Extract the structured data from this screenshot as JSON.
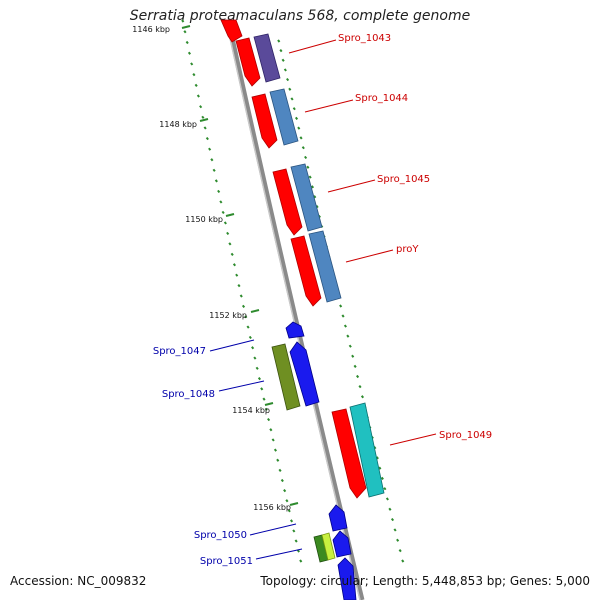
{
  "title": "Serratia proteamaculans 568, complete genome",
  "footer": {
    "accession": "Accession: NC_009832",
    "summary": "Topology: circular; Length: 5,448,853 bp; Genes: 5,000"
  },
  "colors": {
    "backbone": "#8a8a8a",
    "tick": "#2e8b2e",
    "forward_label": "#cc0000",
    "reverse_label": "#0000aa"
  },
  "ticks": [
    {
      "label": "1146 kbp",
      "pos": 1146
    },
    {
      "label": "1148 kbp",
      "pos": 1148
    },
    {
      "label": "1150 kbp",
      "pos": 1150
    },
    {
      "label": "1152 kbp",
      "pos": 1152
    },
    {
      "label": "1154 kbp",
      "pos": 1154
    },
    {
      "label": "1156 kbp",
      "pos": 1156
    }
  ],
  "genes": [
    {
      "name": "Spro_1043",
      "strand": "+",
      "color": "#5a4a9a"
    },
    {
      "name": "Spro_1044",
      "strand": "+",
      "color": "#4f86c0"
    },
    {
      "name": "Spro_1045",
      "strand": "+",
      "color": "#4f86c0"
    },
    {
      "name": "proY",
      "strand": "+",
      "color": "#4f86c0"
    },
    {
      "name": "Spro_1047",
      "strand": "-",
      "color": "#1a1aee"
    },
    {
      "name": "Spro_1048",
      "strand": "-",
      "color": "#6f8f22"
    },
    {
      "name": "Spro_1049",
      "strand": "+",
      "color": "#20c0c0"
    },
    {
      "name": "Spro_1050",
      "strand": "-",
      "color": "#1a1aee"
    },
    {
      "name": "Spro_1051",
      "strand": "-",
      "color": "#7ac020"
    }
  ]
}
